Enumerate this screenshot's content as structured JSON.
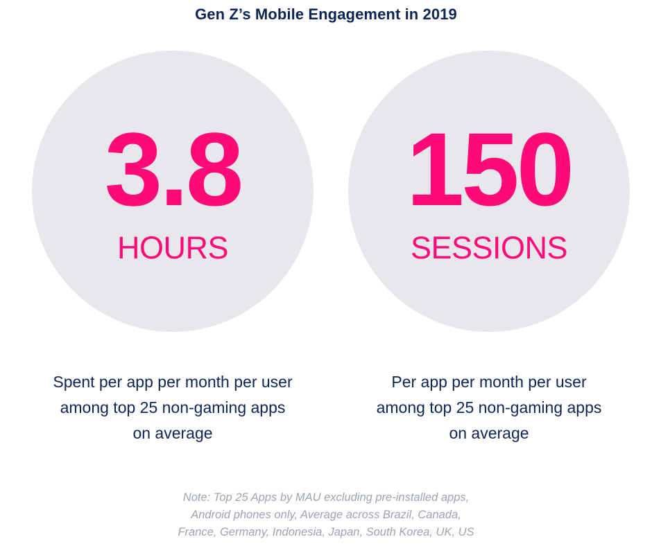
{
  "title": "Gen Z’s Mobile Engagement in 2019",
  "colors": {
    "title": "#0d2555",
    "accent": "#ff0a78",
    "circle": "#e8e8ec",
    "caption": "#0d2555",
    "note": "#9da3b4"
  },
  "stats": [
    {
      "value": "3.8",
      "unit": "HOURS",
      "caption_lines": [
        "Spent per app per month per user",
        "among top 25 non-gaming apps",
        "on average"
      ]
    },
    {
      "value": "150",
      "unit": "SESSIONS",
      "caption_lines": [
        "Per app per month per user",
        "among top 25 non-gaming apps",
        "on average"
      ]
    }
  ],
  "note_lines": [
    "Note: Top 25 Apps by MAU excluding pre-installed apps,",
    "Android phones only, Average across Brazil, Canada,",
    "France, Germany, Indonesia, Japan, South Korea, UK, US"
  ]
}
